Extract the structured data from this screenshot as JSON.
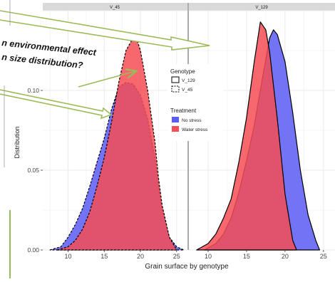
{
  "overlay": {
    "callout_line1": "n environmental effect",
    "callout_line2": "n size distribution?"
  },
  "colors": {
    "no_stress": "#5b5bf5",
    "water_stress": "#f54e55",
    "overlap": "#a8235f",
    "arrow": "#9bbb59",
    "strip": "#d9d9d9",
    "grid": "#ebebeb"
  },
  "legend": {
    "genotype_title": "Genotype",
    "genotype_items": [
      "V_129",
      "V_45"
    ],
    "treatment_title": "Treatment",
    "treatment_items": [
      "No stress",
      "Water stress"
    ]
  },
  "chart_data": {
    "type": "area",
    "xlabel": "Grain surface by genotype",
    "ylabel": "Distribution",
    "ylim": [
      0,
      0.15
    ],
    "grid": true,
    "legend_position": "right",
    "y_ticks": [
      "0.00",
      "0.05",
      "0.10"
    ],
    "panels": [
      {
        "strip": "V_45",
        "xlim": [
          6.5,
          26.5
        ],
        "x_ticks": [
          "10",
          "15",
          "20",
          "25"
        ],
        "series": [
          {
            "name": "No stress",
            "genotype": "V_45",
            "x": [
              7.5,
              9,
              10,
              11,
              12,
              13,
              14,
              15,
              16,
              17,
              18,
              19,
              20,
              21,
              22,
              22.5,
              23,
              24,
              25,
              26
            ],
            "y": [
              0,
              0.002,
              0.008,
              0.016,
              0.026,
              0.04,
              0.055,
              0.07,
              0.088,
              0.102,
              0.105,
              0.104,
              0.097,
              0.082,
              0.058,
              0.04,
              0.025,
              0.008,
              0.002,
              0
            ]
          },
          {
            "name": "Water stress",
            "genotype": "V_45",
            "x": [
              8.5,
              10,
              11,
              12,
              13,
              14,
              15,
              16,
              17,
              18,
              19,
              19.5,
              20,
              21,
              22,
              22.5,
              23,
              24,
              25
            ],
            "y": [
              0,
              0.002,
              0.006,
              0.013,
              0.024,
              0.04,
              0.058,
              0.08,
              0.105,
              0.125,
              0.133,
              0.132,
              0.125,
              0.1,
              0.068,
              0.045,
              0.028,
              0.008,
              0
            ]
          }
        ]
      },
      {
        "strip": "V_129",
        "xlim": [
          7.5,
          26.5
        ],
        "x_ticks": [
          "10",
          "15",
          "20",
          "25"
        ],
        "series": [
          {
            "name": "No stress",
            "genotype": "V_129",
            "x": [
              9.5,
              11,
              12,
              13,
              14,
              15,
              16,
              17,
              18,
              18.5,
              19,
              20,
              21,
              22,
              23,
              24,
              24.5
            ],
            "y": [
              0,
              0.004,
              0.01,
              0.02,
              0.036,
              0.056,
              0.078,
              0.106,
              0.133,
              0.138,
              0.135,
              0.118,
              0.086,
              0.05,
              0.022,
              0.006,
              0
            ]
          },
          {
            "name": "Water stress",
            "genotype": "V_129",
            "x": [
              8.5,
              10,
              11,
              12,
              13,
              14,
              15,
              16,
              16.8,
              17.5,
              18,
              19,
              20,
              21,
              21.5
            ],
            "y": [
              0,
              0.004,
              0.01,
              0.02,
              0.032,
              0.055,
              0.083,
              0.118,
              0.143,
              0.138,
              0.124,
              0.082,
              0.035,
              0.006,
              0
            ]
          }
        ]
      }
    ]
  }
}
